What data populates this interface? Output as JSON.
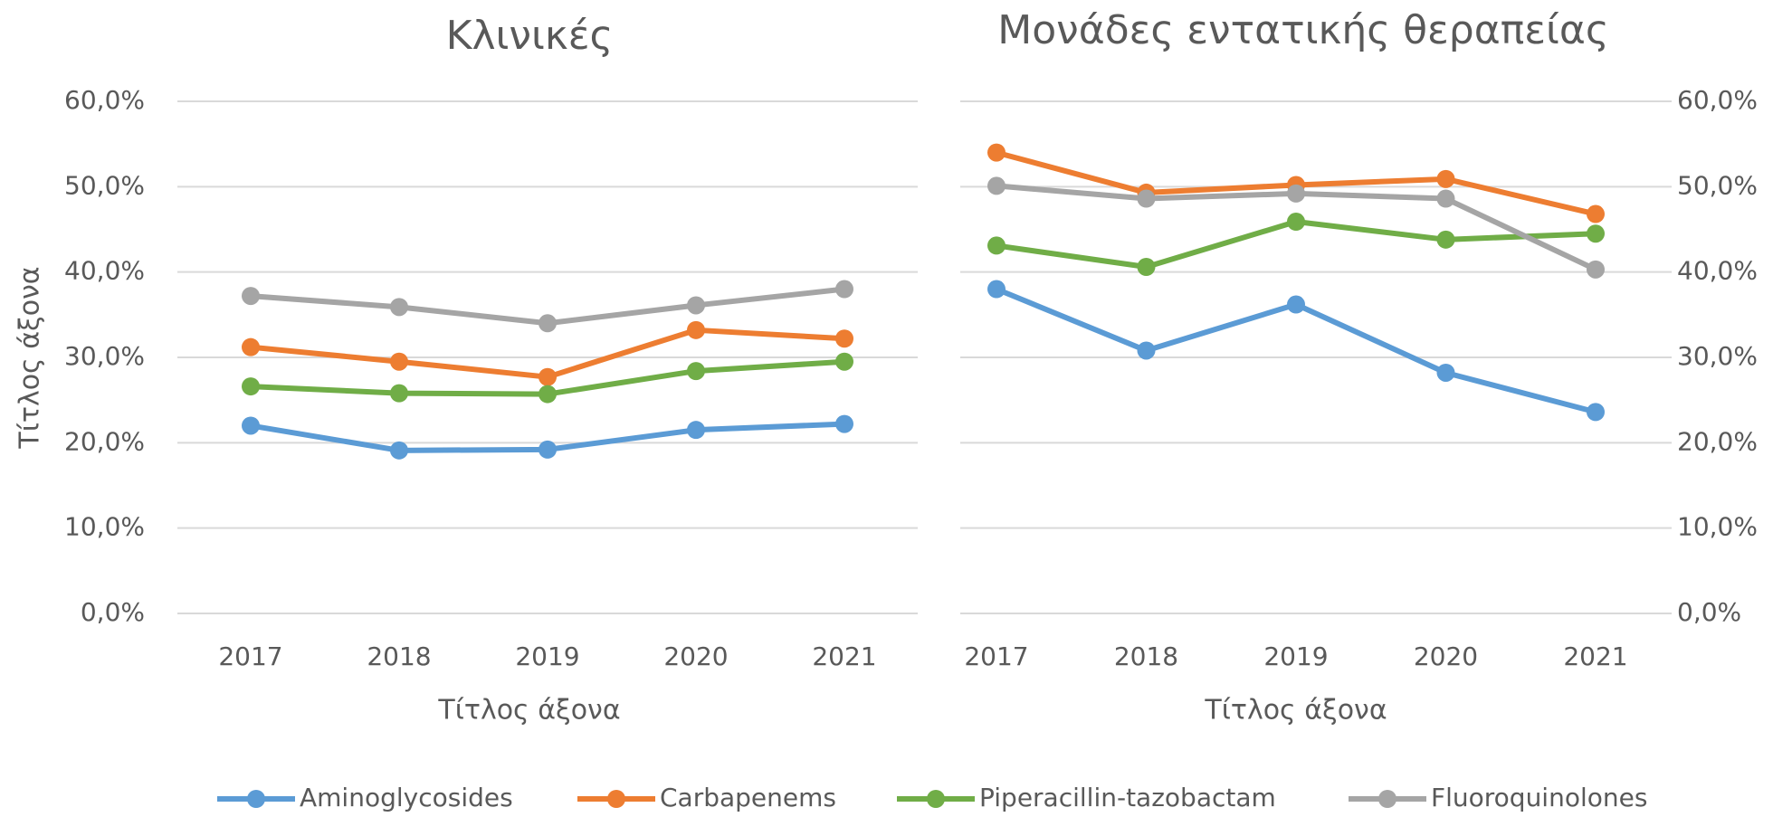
{
  "chart_data": [
    {
      "type": "line",
      "title": "Κλινικές",
      "x_label": "Τίτλος άξονα",
      "y_label": "Τίτλος άξονα",
      "categories": [
        "2017",
        "2018",
        "2019",
        "2020",
        "2021"
      ],
      "series": [
        {
          "name": "Aminoglycosides",
          "color": "#5b9bd5",
          "values": [
            22.0,
            19.1,
            19.2,
            21.5,
            22.2
          ]
        },
        {
          "name": "Carbapenems",
          "color": "#ed7d31",
          "values": [
            31.2,
            29.5,
            27.7,
            33.2,
            32.2
          ]
        },
        {
          "name": "Piperacillin-tazobactam",
          "color": "#70ad47",
          "values": [
            26.6,
            25.8,
            25.7,
            28.4,
            29.5
          ]
        },
        {
          "name": "Fluoroquinolones",
          "color": "#a5a5a5",
          "values": [
            37.2,
            35.9,
            34.0,
            36.1,
            38.0
          ]
        }
      ],
      "ylim": [
        0,
        60
      ],
      "yticks": [
        {
          "value": 0,
          "label": "0,0%"
        },
        {
          "value": 10,
          "label": "10,0%"
        },
        {
          "value": 20,
          "label": "20,0%"
        },
        {
          "value": 30,
          "label": "30,0%"
        },
        {
          "value": 40,
          "label": "40,0%"
        },
        {
          "value": 50,
          "label": "50,0%"
        },
        {
          "value": 60,
          "label": "60,0%"
        }
      ],
      "grid": true,
      "legend": "bottom"
    },
    {
      "type": "line",
      "title": "Μονάδες εντατικής θεραπείας",
      "x_label": "Τίτλος άξονα",
      "categories": [
        "2017",
        "2018",
        "2019",
        "2020",
        "2021"
      ],
      "series": [
        {
          "name": "Aminoglycosides",
          "color": "#5b9bd5",
          "values": [
            38.0,
            30.8,
            36.2,
            28.2,
            23.6
          ]
        },
        {
          "name": "Carbapenems",
          "color": "#ed7d31",
          "values": [
            54.0,
            49.3,
            50.2,
            50.9,
            46.8
          ]
        },
        {
          "name": "Piperacillin-tazobactam",
          "color": "#70ad47",
          "values": [
            43.1,
            40.6,
            45.9,
            43.8,
            44.5
          ]
        },
        {
          "name": "Fluoroquinolones",
          "color": "#a5a5a5",
          "values": [
            50.1,
            48.6,
            49.2,
            48.6,
            40.3
          ]
        }
      ],
      "ylim": [
        0,
        60
      ],
      "yticks": [
        {
          "value": 0,
          "label": "0,0%"
        },
        {
          "value": 10,
          "label": "10,0%"
        },
        {
          "value": 20,
          "label": "20,0%"
        },
        {
          "value": 30,
          "label": "30,0%"
        },
        {
          "value": 40,
          "label": "40,0%"
        },
        {
          "value": 50,
          "label": "50,0%"
        },
        {
          "value": 60,
          "label": "60,0%"
        }
      ],
      "grid": true,
      "y_axis_side": "right"
    }
  ]
}
